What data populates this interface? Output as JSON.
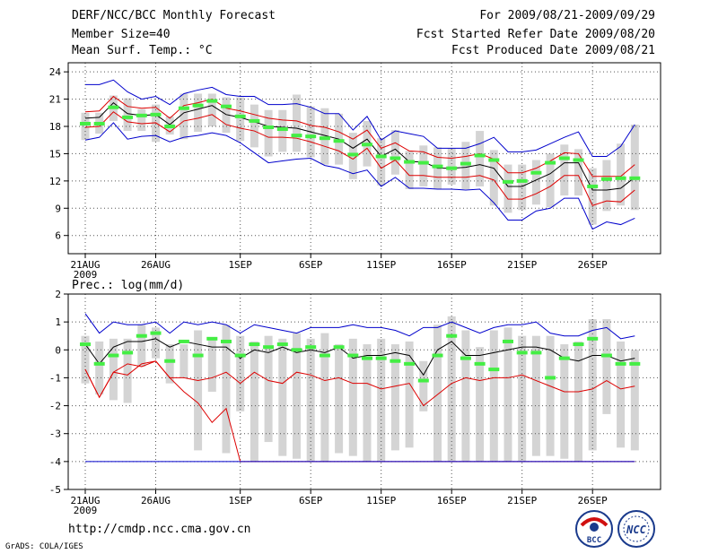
{
  "header": {
    "title": "DERF/NCC/BCC Monthly Forecast",
    "member_size": "Member Size=40",
    "variable": "Mean Surf. Temp.: °C",
    "period": "For 2009/08/21-2009/09/29",
    "fcst_started": "Fcst Started Refer Date 2009/08/20",
    "fcst_produced": "Fcst Produced Date 2009/08/21"
  },
  "footer": {
    "url": "http://cmdp.ncc.cma.gov.cn",
    "credit": "GrADS: COLA/IGES",
    "logo_left_text": "BCC",
    "logo_right_text": "NCC"
  },
  "colors": {
    "upper_line": "#0000cc",
    "lower_line": "#dd0000",
    "mean_line": "#000000",
    "median_mark": "#44ee44",
    "box": "#d4d4d4"
  },
  "chart_data": [
    {
      "type": "line",
      "title": "Mean Surf. Temp.: °C",
      "xlabel": "",
      "ylabel": "°C",
      "ylim": [
        4,
        25
      ],
      "yticks": [
        6,
        9,
        12,
        15,
        18,
        21,
        24
      ],
      "x_tick_labels": [
        "21AUG",
        "26AUG",
        "1SEP",
        "6SEP",
        "11SEP",
        "16SEP",
        "21SEP",
        "26SEP"
      ],
      "x_tick_sublabel": "2009",
      "x_tick_days": [
        1,
        6,
        12,
        17,
        22,
        27,
        32,
        37
      ],
      "days": [
        1,
        2,
        3,
        4,
        5,
        6,
        7,
        8,
        9,
        10,
        11,
        12,
        13,
        14,
        15,
        16,
        17,
        18,
        19,
        20,
        21,
        22,
        23,
        24,
        25,
        26,
        27,
        28,
        29,
        30,
        31,
        32,
        33,
        34,
        35,
        36,
        37,
        38,
        39,
        40
      ],
      "series": [
        {
          "name": "upper",
          "color": "#0000cc",
          "values": [
            22.6,
            22.6,
            23.1,
            21.8,
            21.0,
            21.3,
            20.4,
            21.6,
            22.0,
            22.3,
            21.5,
            21.3,
            21.3,
            20.4,
            20.4,
            20.5,
            20.1,
            19.4,
            19.4,
            17.6,
            19.1,
            16.5,
            17.5,
            17.2,
            16.9,
            15.6,
            15.6,
            15.6,
            16.1,
            16.8,
            15.2,
            15.2,
            15.4,
            16.1,
            16.8,
            17.4,
            14.7,
            14.7,
            15.8,
            18.2
          ]
        },
        {
          "name": "upper-red",
          "color": "#dd0000",
          "values": [
            19.6,
            19.7,
            21.3,
            20.2,
            20.0,
            20.1,
            18.9,
            20.3,
            20.6,
            21.0,
            20.0,
            19.7,
            19.3,
            18.9,
            18.7,
            18.6,
            18.1,
            17.9,
            17.4,
            16.6,
            17.6,
            15.6,
            16.2,
            15.3,
            15.2,
            14.6,
            14.5,
            14.7,
            15.0,
            14.4,
            12.9,
            12.9,
            13.4,
            14.2,
            15.1,
            15.0,
            12.5,
            12.5,
            12.5,
            13.8
          ]
        },
        {
          "name": "mean",
          "color": "#000000",
          "values": [
            18.9,
            19.0,
            20.6,
            19.4,
            19.2,
            19.3,
            18.2,
            19.5,
            19.9,
            20.3,
            19.3,
            19.0,
            18.5,
            18.0,
            17.9,
            17.8,
            17.4,
            17.0,
            16.6,
            15.6,
            16.6,
            14.7,
            15.5,
            14.1,
            14.1,
            13.4,
            13.4,
            13.5,
            13.8,
            13.4,
            11.4,
            11.4,
            12.1,
            12.8,
            14.0,
            14.0,
            11.0,
            11.0,
            11.2,
            12.4
          ]
        },
        {
          "name": "lower-red",
          "color": "#dd0000",
          "values": [
            17.9,
            18.0,
            19.6,
            18.5,
            18.3,
            18.4,
            17.4,
            18.6,
            18.9,
            19.3,
            18.2,
            17.8,
            17.5,
            16.8,
            16.8,
            16.7,
            16.3,
            15.8,
            15.3,
            14.4,
            15.6,
            13.4,
            14.3,
            12.6,
            12.6,
            12.4,
            12.4,
            12.4,
            12.6,
            12.1,
            10.0,
            10.0,
            10.6,
            11.4,
            12.6,
            12.6,
            9.3,
            9.8,
            9.7,
            11.0
          ]
        },
        {
          "name": "lower",
          "color": "#0000cc",
          "values": [
            16.5,
            16.8,
            18.4,
            16.6,
            16.9,
            17.0,
            16.3,
            16.8,
            17.0,
            17.3,
            17.0,
            16.2,
            15.1,
            14.0,
            14.2,
            14.4,
            14.5,
            13.7,
            13.4,
            12.8,
            13.2,
            11.4,
            12.4,
            11.2,
            11.2,
            11.1,
            11.1,
            11.0,
            11.1,
            9.6,
            7.7,
            7.7,
            8.7,
            9.0,
            10.1,
            10.1,
            6.7,
            7.5,
            7.2,
            7.9
          ]
        }
      ],
      "box_low": [
        16.5,
        17.2,
        18.6,
        17.5,
        17.5,
        16.3,
        17.1,
        16.6,
        17.4,
        18.0,
        17.3,
        16.4,
        15.7,
        14.7,
        15.2,
        15.2,
        14.6,
        13.8,
        13.8,
        12.2,
        13.6,
        11.5,
        12.7,
        11.1,
        11.4,
        11.1,
        11.6,
        11.1,
        11.4,
        9.3,
        8.5,
        8.8,
        9.4,
        9.1,
        10.4,
        10.4,
        7.2,
        8.7,
        9.3,
        8.8
      ],
      "box_high": [
        19.5,
        19.5,
        21.4,
        21.1,
        19.9,
        20.4,
        19.1,
        21.6,
        21.6,
        21.6,
        21.2,
        21.2,
        20.4,
        19.8,
        19.8,
        21.5,
        20.2,
        20.0,
        19.4,
        17.3,
        18.6,
        16.7,
        17.6,
        15.3,
        15.9,
        15.7,
        15.6,
        16.3,
        17.5,
        15.4,
        13.8,
        13.8,
        14.3,
        15.0,
        16.0,
        15.5,
        13.4,
        14.3,
        16.1,
        18.2
      ],
      "medians": [
        18.3,
        18.3,
        20.1,
        19.0,
        19.2,
        19.3,
        18.0,
        20.0,
        20.3,
        20.8,
        20.2,
        19.1,
        18.6,
        17.9,
        17.7,
        17.0,
        16.9,
        16.7,
        16.4,
        14.9,
        16.0,
        14.7,
        14.5,
        14.1,
        14.0,
        13.6,
        13.4,
        13.9,
        14.8,
        14.3,
        11.9,
        12.0,
        12.9,
        14.0,
        14.5,
        14.3,
        11.4,
        12.2,
        12.3,
        12.3
      ]
    },
    {
      "type": "line",
      "title": "Prec.: log(mm/d)",
      "xlabel": "",
      "ylabel": "log(mm/d)",
      "ylim": [
        -5,
        2
      ],
      "yticks": [
        -5,
        -4,
        -3,
        -2,
        -1,
        0,
        1,
        2
      ],
      "x_tick_labels": [
        "21AUG",
        "26AUG",
        "1SEP",
        "6SEP",
        "11SEP",
        "16SEP",
        "21SEP",
        "26SEP"
      ],
      "x_tick_sublabel": "2009",
      "x_tick_days": [
        1,
        6,
        12,
        17,
        22,
        27,
        32,
        37
      ],
      "days": [
        1,
        2,
        3,
        4,
        5,
        6,
        7,
        8,
        9,
        10,
        11,
        12,
        13,
        14,
        15,
        16,
        17,
        18,
        19,
        20,
        21,
        22,
        23,
        24,
        25,
        26,
        27,
        28,
        29,
        30,
        31,
        32,
        33,
        34,
        35,
        36,
        37,
        38,
        39,
        40
      ],
      "series": [
        {
          "name": "upper",
          "color": "#0000cc",
          "values": [
            1.3,
            0.6,
            1.0,
            0.9,
            0.9,
            1.0,
            0.6,
            1.0,
            0.9,
            1.0,
            0.9,
            0.6,
            0.9,
            0.8,
            0.7,
            0.6,
            0.8,
            0.8,
            0.8,
            0.9,
            0.8,
            0.8,
            0.7,
            0.5,
            0.8,
            0.8,
            1.0,
            0.8,
            0.6,
            0.8,
            0.9,
            0.9,
            1.0,
            0.6,
            0.5,
            0.5,
            0.7,
            0.8,
            0.4,
            0.5
          ]
        },
        {
          "name": "mean",
          "color": "#000000",
          "values": [
            0.2,
            -0.5,
            0.1,
            0.3,
            0.3,
            0.4,
            0.1,
            0.3,
            0.2,
            0.1,
            0.1,
            -0.3,
            0.0,
            -0.1,
            0.1,
            -0.1,
            0.0,
            -0.1,
            0.1,
            -0.3,
            -0.2,
            -0.2,
            -0.1,
            -0.2,
            -0.9,
            0.0,
            0.3,
            -0.2,
            -0.2,
            -0.1,
            0.0,
            0.1,
            0.1,
            0.0,
            -0.3,
            -0.4,
            -0.2,
            -0.2,
            -0.4,
            -0.3
          ]
        },
        {
          "name": "lower-red",
          "color": "#dd0000",
          "values": [
            -0.7,
            -1.7,
            -0.8,
            -0.5,
            -0.6,
            -0.4,
            -1.0,
            -1.5,
            -1.9,
            -2.6,
            -2.1,
            -4.0,
            -4.0,
            -4.0,
            -4.0,
            -4.0,
            -4.0,
            -4.0,
            -4.0,
            -4.0,
            -4.0,
            -4.0,
            -4.0,
            -4.0,
            -4.0,
            -4.0,
            -4.0,
            -4.0,
            -4.0,
            -4.0,
            -4.0,
            -4.0,
            -4.0,
            -4.0,
            -4.0,
            -4.0,
            -4.0,
            -4.0,
            -4.0,
            -4.0
          ]
        },
        {
          "name": "lower",
          "color": "#0000cc",
          "values": [
            -4,
            -4,
            -4,
            -4,
            -4,
            -4,
            -4,
            -4,
            -4,
            -4,
            -4,
            -4,
            -4,
            -4,
            -4,
            -4,
            -4,
            -4,
            -4,
            -4,
            -4,
            -4,
            -4,
            -4,
            -4,
            -4,
            -4,
            -4,
            -4,
            -4,
            -4,
            -4,
            -4,
            -4,
            -4,
            -4,
            -4,
            -4,
            -4,
            -4
          ]
        },
        {
          "name": "lower-red-flat",
          "color": "#dd0000",
          "values": [
            -0.7,
            -1.7,
            -0.8,
            -0.9,
            -0.5,
            -0.4,
            -1.0,
            -1.0,
            -1.1,
            -1.0,
            -0.8,
            -1.2,
            -0.8,
            -1.1,
            -1.2,
            -0.8,
            -0.9,
            -1.1,
            -1.0,
            -1.2,
            -1.2,
            -1.4,
            -1.3,
            -1.2,
            -2.0,
            -1.6,
            -1.2,
            -1.0,
            -1.1,
            -1.0,
            -1.0,
            -0.9,
            -1.1,
            -1.3,
            -1.5,
            -1.5,
            -1.4,
            -1.1,
            -1.4,
            -1.3
          ]
        }
      ],
      "box_low": [
        -1.2,
        -1.6,
        -1.8,
        -1.9,
        -0.6,
        -0.3,
        -1.2,
        -1.0,
        -3.6,
        -1.5,
        -3.7,
        -2.2,
        -4.0,
        -3.3,
        -3.8,
        -3.9,
        -4.0,
        -4.0,
        -3.7,
        -3.8,
        -4.0,
        -4.0,
        -3.6,
        -3.5,
        -2.2,
        -4.0,
        -4.0,
        -4.0,
        -4.0,
        -4.0,
        -4.0,
        -4.0,
        -3.8,
        -3.8,
        -3.9,
        -4.0,
        -3.6,
        -2.3,
        -3.5,
        -3.6
      ],
      "box_high": [
        0.5,
        0.3,
        0.4,
        0.4,
        0.9,
        0.8,
        0.2,
        0.2,
        0.7,
        0.4,
        0.9,
        0.5,
        0.3,
        0.5,
        0.4,
        0.6,
        0.4,
        0.6,
        0.2,
        0.4,
        0.2,
        0.4,
        0.2,
        0.3,
        -0.4,
        0.9,
        1.2,
        0.7,
        0.1,
        0.7,
        0.8,
        0.5,
        0.5,
        0.5,
        0.2,
        0.3,
        1.1,
        1.1,
        0.3,
        0.0
      ],
      "medians": [
        0.2,
        -0.5,
        -0.2,
        -0.1,
        0.5,
        0.6,
        -0.4,
        0.3,
        -0.2,
        0.4,
        0.3,
        -0.2,
        0.2,
        0.1,
        0.2,
        0.0,
        0.1,
        -0.2,
        0.1,
        -0.2,
        -0.3,
        -0.3,
        -0.4,
        -0.5,
        -1.1,
        -0.2,
        0.5,
        -0.3,
        -0.5,
        -0.7,
        0.3,
        -0.1,
        -0.1,
        -1.0,
        -0.3,
        0.2,
        0.4,
        -0.2,
        -0.5,
        -0.5
      ]
    }
  ]
}
